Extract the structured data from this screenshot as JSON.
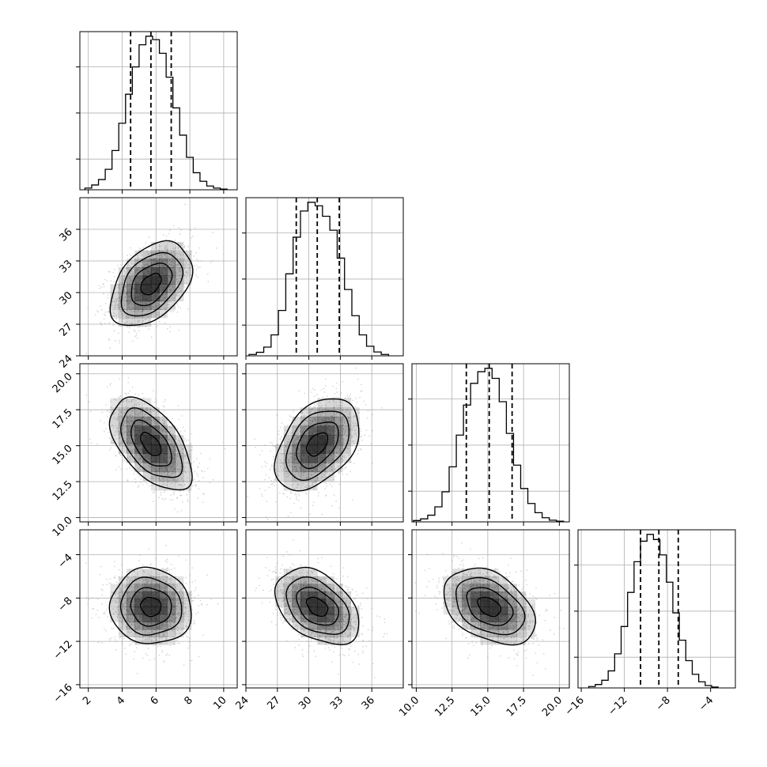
{
  "chart_data": {
    "type": "corner",
    "title": "",
    "grid": true,
    "parameters": [
      {
        "name": "",
        "range": [
          1.5,
          10.8
        ],
        "ticks": [
          2,
          4,
          6,
          8,
          10
        ],
        "tick_labels": [
          "2",
          "4",
          "6",
          "8",
          "10"
        ],
        "quantiles": [
          4.5,
          5.7,
          6.9
        ],
        "hist": {
          "bin_edges": [
            1.8,
            2.2,
            2.6,
            3.0,
            3.4,
            3.8,
            4.2,
            4.6,
            5.0,
            5.4,
            5.8,
            6.2,
            6.6,
            7.0,
            7.4,
            7.8,
            8.2,
            8.6,
            9.0,
            9.4,
            9.8,
            10.2
          ],
          "counts": [
            10,
            28,
            60,
            120,
            230,
            390,
            560,
            720,
            850,
            900,
            880,
            800,
            660,
            480,
            320,
            190,
            100,
            50,
            22,
            10,
            4
          ]
        }
      },
      {
        "name": "",
        "range": [
          24.0,
          39.0
        ],
        "ticks": [
          24,
          27,
          30,
          33,
          36
        ],
        "tick_labels": [
          "24",
          "27",
          "30",
          "33",
          "36"
        ],
        "quantiles": [
          28.8,
          30.8,
          32.9
        ],
        "hist": {
          "bin_edges": [
            24.3,
            25.0,
            25.7,
            26.4,
            27.1,
            27.8,
            28.5,
            29.2,
            29.9,
            30.6,
            31.3,
            32.0,
            32.7,
            33.4,
            34.1,
            34.8,
            35.5,
            36.2,
            36.9,
            37.6
          ],
          "counts": [
            8,
            20,
            50,
            120,
            260,
            470,
            680,
            830,
            880,
            860,
            800,
            720,
            560,
            380,
            230,
            120,
            55,
            22,
            8
          ]
        }
      },
      {
        "name": "",
        "range": [
          9.7,
          20.7
        ],
        "ticks": [
          10.0,
          12.5,
          15.0,
          17.5,
          20.0
        ],
        "tick_labels": [
          "10.0",
          "12.5",
          "15.0",
          "17.5",
          "20.0"
        ],
        "quantiles": [
          13.5,
          15.1,
          16.7
        ],
        "hist": {
          "bin_edges": [
            9.8,
            10.3,
            10.8,
            11.3,
            11.8,
            12.3,
            12.8,
            13.3,
            13.8,
            14.3,
            14.8,
            15.3,
            15.8,
            16.3,
            16.8,
            17.3,
            17.8,
            18.3,
            18.8,
            19.3,
            19.8,
            20.3
          ],
          "counts": [
            8,
            18,
            40,
            90,
            180,
            330,
            520,
            700,
            830,
            900,
            920,
            860,
            720,
            530,
            340,
            200,
            110,
            55,
            25,
            10,
            4
          ]
        }
      },
      {
        "name": "",
        "range": [
          -16.3,
          -1.7
        ],
        "ticks": [
          -16,
          -12,
          -8,
          -4
        ],
        "tick_labels": [
          "−16",
          "−12",
          "−8",
          "−4"
        ],
        "quantiles": [
          -10.5,
          -8.8,
          -7.0
        ],
        "hist": {
          "bin_edges": [
            -15.3,
            -14.7,
            -14.1,
            -13.5,
            -12.9,
            -12.3,
            -11.7,
            -11.1,
            -10.5,
            -9.9,
            -9.3,
            -8.7,
            -8.1,
            -7.5,
            -6.9,
            -6.3,
            -5.7,
            -5.1,
            -4.5,
            -3.9,
            -3.3
          ],
          "counts": [
            8,
            20,
            45,
            100,
            200,
            360,
            560,
            740,
            860,
            900,
            870,
            780,
            620,
            440,
            280,
            160,
            80,
            36,
            14,
            5
          ]
        }
      }
    ],
    "pairs": [
      {
        "x": 0,
        "y": 1,
        "mean": [
          5.7,
          30.8
        ],
        "sd": [
          1.2,
          2.0
        ],
        "rho": 0.42
      },
      {
        "x": 0,
        "y": 2,
        "mean": [
          5.7,
          15.1
        ],
        "sd": [
          1.2,
          1.6
        ],
        "rho": -0.55
      },
      {
        "x": 1,
        "y": 2,
        "mean": [
          30.8,
          15.1
        ],
        "sd": [
          2.0,
          1.6
        ],
        "rho": 0.42
      },
      {
        "x": 0,
        "y": 3,
        "mean": [
          5.7,
          -8.8
        ],
        "sd": [
          1.2,
          1.75
        ],
        "rho": -0.05
      },
      {
        "x": 1,
        "y": 3,
        "mean": [
          30.8,
          -8.8
        ],
        "sd": [
          2.0,
          1.75
        ],
        "rho": -0.4
      },
      {
        "x": 2,
        "y": 3,
        "mean": [
          15.1,
          -8.8
        ],
        "sd": [
          1.6,
          1.75
        ],
        "rho": -0.38
      }
    ],
    "contour_levels_sigma": [
      0.5,
      1.0,
      1.5,
      2.0
    ]
  },
  "colors": {
    "line": "#000000",
    "grid": "#b0b0b0",
    "scatter": "#9a9a9a",
    "density": "#000000"
  }
}
